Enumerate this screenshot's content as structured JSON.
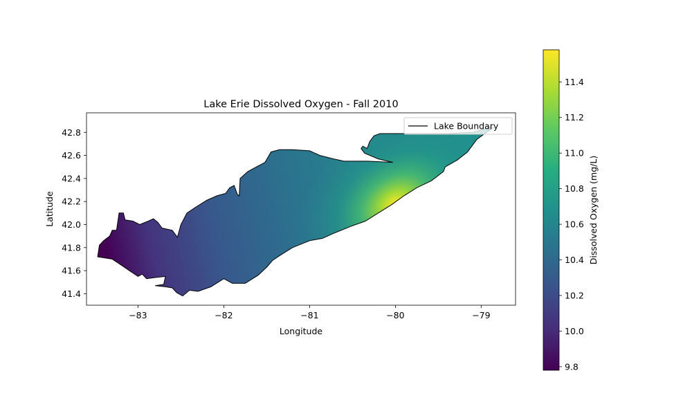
{
  "chart_data": {
    "type": "heatmap",
    "title": "Lake Erie Dissolved Oxygen - Fall 2010",
    "xlabel": "Longitude",
    "ylabel": "Latitude",
    "xlim": [
      -83.6,
      -78.6
    ],
    "ylim": [
      41.3,
      42.97
    ],
    "xticks": [
      -83,
      -82,
      -81,
      -80,
      -79
    ],
    "xtick_labels": [
      "−83",
      "−82",
      "−81",
      "−80",
      "−79"
    ],
    "yticks": [
      41.4,
      41.6,
      41.8,
      42.0,
      42.2,
      42.4,
      42.6,
      42.8
    ],
    "ytick_labels": [
      "41.4",
      "41.6",
      "41.8",
      "42.0",
      "42.2",
      "42.4",
      "42.6",
      "42.8"
    ],
    "grid": false,
    "legend": {
      "placement": "upper-right",
      "entries": [
        "Lake Boundary"
      ]
    },
    "colorbar": {
      "label": "Dissolved Oxygen (mg/L)",
      "colormap": "viridis",
      "range": [
        9.78,
        11.58
      ],
      "ticks": [
        9.8,
        10.0,
        10.2,
        10.4,
        10.6,
        10.8,
        11.0,
        11.2,
        11.4
      ],
      "tick_labels": [
        "9.8",
        "10.0",
        "10.2",
        "10.4",
        "10.6",
        "10.8",
        "11.0",
        "11.2",
        "11.4"
      ]
    },
    "field": {
      "peak_location": [
        -80.0,
        42.18
      ],
      "peak_value": 11.58,
      "min_location": [
        -83.4,
        41.85
      ],
      "min_value": 9.78
    },
    "boundary": [
      [
        -83.47,
        41.72
      ],
      [
        -83.45,
        41.82
      ],
      [
        -83.4,
        41.86
      ],
      [
        -83.33,
        41.9
      ],
      [
        -83.3,
        41.95
      ],
      [
        -83.25,
        41.95
      ],
      [
        -83.22,
        42.1
      ],
      [
        -83.17,
        42.1
      ],
      [
        -83.15,
        42.04
      ],
      [
        -83.06,
        42.03
      ],
      [
        -82.98,
        42.0
      ],
      [
        -82.88,
        42.03
      ],
      [
        -82.82,
        42.05
      ],
      [
        -82.77,
        42.02
      ],
      [
        -82.72,
        41.97
      ],
      [
        -82.6,
        41.95
      ],
      [
        -82.54,
        41.89
      ],
      [
        -82.5,
        42.0
      ],
      [
        -82.43,
        42.1
      ],
      [
        -82.33,
        42.15
      ],
      [
        -82.2,
        42.21
      ],
      [
        -82.08,
        42.25
      ],
      [
        -81.98,
        42.27
      ],
      [
        -81.93,
        42.32
      ],
      [
        -81.88,
        42.34
      ],
      [
        -81.84,
        42.26
      ],
      [
        -81.82,
        42.25
      ],
      [
        -81.81,
        42.4
      ],
      [
        -81.72,
        42.46
      ],
      [
        -81.62,
        42.5
      ],
      [
        -81.52,
        42.54
      ],
      [
        -81.45,
        42.63
      ],
      [
        -81.35,
        42.65
      ],
      [
        -81.2,
        42.65
      ],
      [
        -81.0,
        42.64
      ],
      [
        -80.88,
        42.6
      ],
      [
        -80.72,
        42.57
      ],
      [
        -80.6,
        42.55
      ],
      [
        -80.42,
        42.55
      ],
      [
        -80.32,
        42.55
      ],
      [
        -80.03,
        42.54
      ],
      [
        -80.2,
        42.57
      ],
      [
        -80.36,
        42.62
      ],
      [
        -80.4,
        42.66
      ],
      [
        -80.38,
        42.68
      ],
      [
        -80.33,
        42.66
      ],
      [
        -80.3,
        42.72
      ],
      [
        -80.25,
        42.77
      ],
      [
        -80.18,
        42.79
      ],
      [
        -80.0,
        42.79
      ],
      [
        -79.82,
        42.79
      ],
      [
        -79.6,
        42.79
      ],
      [
        -79.4,
        42.79
      ],
      [
        -79.1,
        42.8
      ],
      [
        -78.92,
        42.84
      ],
      [
        -78.86,
        42.84
      ],
      [
        -78.94,
        42.8
      ],
      [
        -79.05,
        42.74
      ],
      [
        -79.16,
        42.63
      ],
      [
        -79.28,
        42.56
      ],
      [
        -79.42,
        42.5
      ],
      [
        -79.44,
        42.46
      ],
      [
        -79.58,
        42.38
      ],
      [
        -79.75,
        42.32
      ],
      [
        -79.9,
        42.25
      ],
      [
        -80.05,
        42.17
      ],
      [
        -80.2,
        42.1
      ],
      [
        -80.35,
        42.03
      ],
      [
        -80.5,
        41.99
      ],
      [
        -80.7,
        41.93
      ],
      [
        -80.85,
        41.88
      ],
      [
        -81.0,
        41.86
      ],
      [
        -81.2,
        41.8
      ],
      [
        -81.35,
        41.73
      ],
      [
        -81.43,
        41.69
      ],
      [
        -81.5,
        41.63
      ],
      [
        -81.6,
        41.56
      ],
      [
        -81.75,
        41.49
      ],
      [
        -81.9,
        41.49
      ],
      [
        -82.0,
        41.53
      ],
      [
        -82.15,
        41.46
      ],
      [
        -82.3,
        41.42
      ],
      [
        -82.4,
        41.43
      ],
      [
        -82.48,
        41.38
      ],
      [
        -82.55,
        41.41
      ],
      [
        -82.6,
        41.45
      ],
      [
        -82.68,
        41.46
      ],
      [
        -82.8,
        41.47
      ],
      [
        -82.7,
        41.48
      ],
      [
        -82.68,
        41.55
      ],
      [
        -82.8,
        41.54
      ],
      [
        -82.9,
        41.53
      ],
      [
        -82.95,
        41.57
      ],
      [
        -83.0,
        41.55
      ],
      [
        -83.1,
        41.6
      ],
      [
        -83.2,
        41.65
      ],
      [
        -83.3,
        41.7
      ],
      [
        -83.47,
        41.72
      ]
    ]
  }
}
